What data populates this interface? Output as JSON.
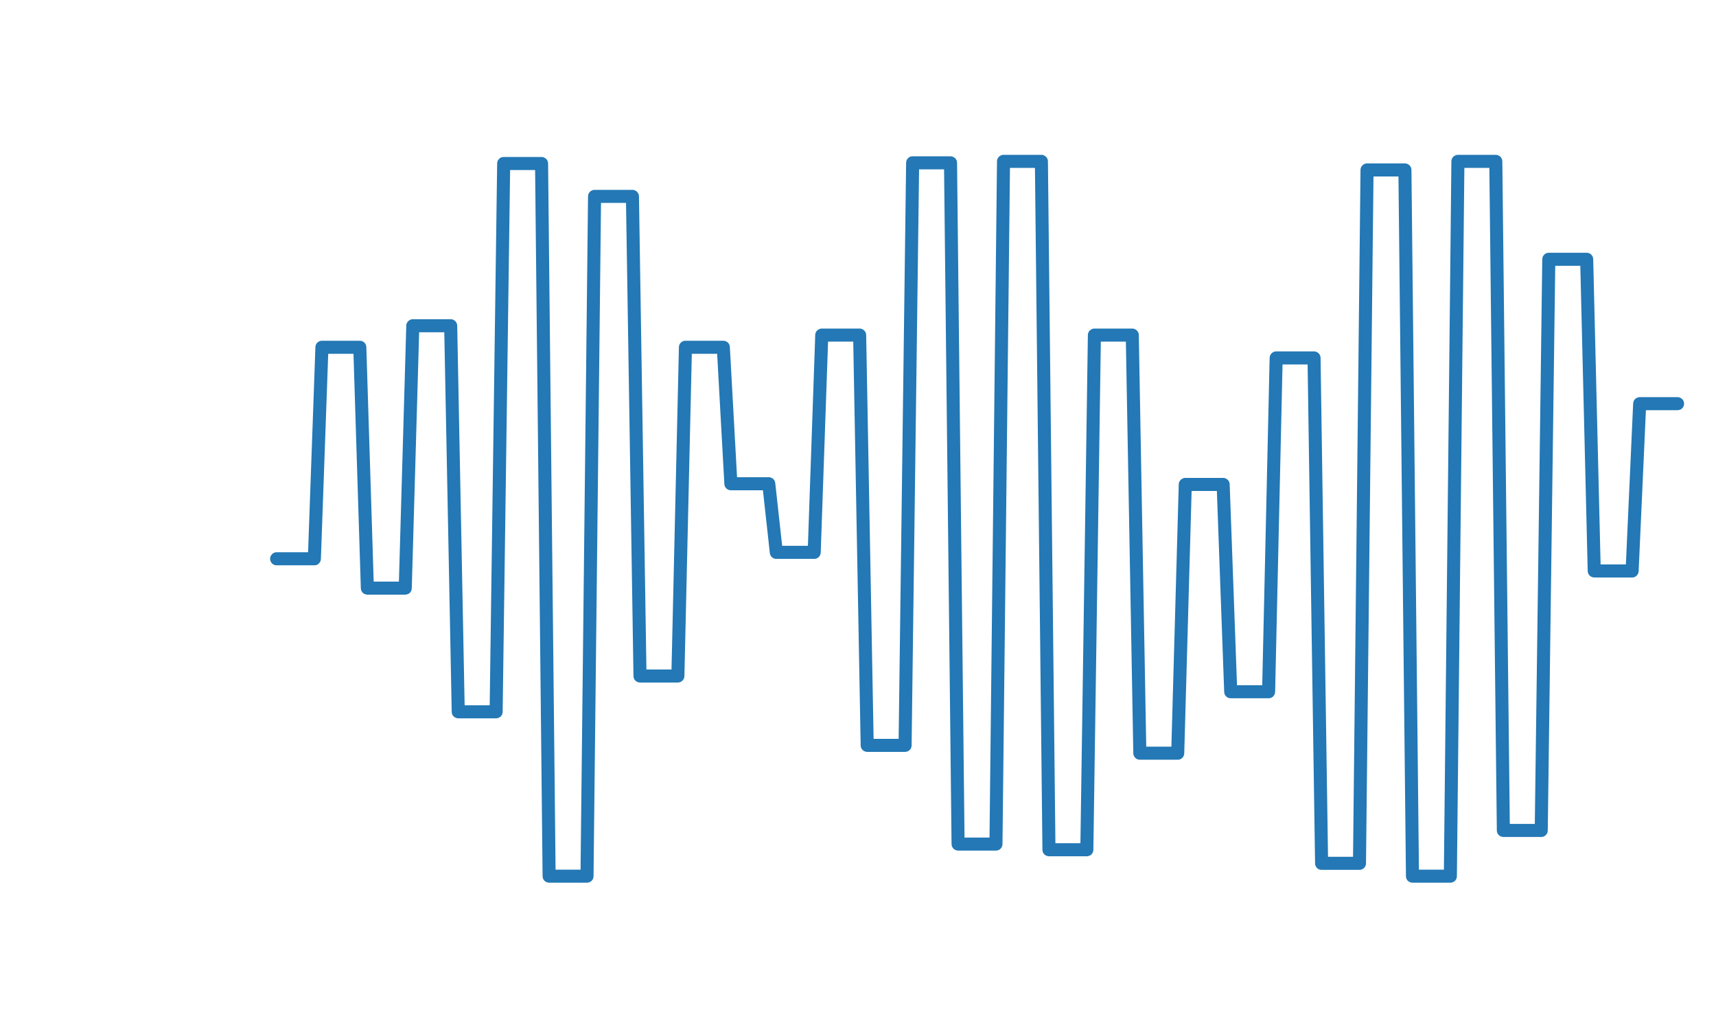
{
  "figure": {
    "stroke_color": "#2378B5",
    "background_color": "#FFFFFF",
    "icon": "sound-wave-icon"
  },
  "waveform": {
    "line_style": "stepped square wave",
    "levels": [
      0.556,
      0.26,
      0.597,
      0.23,
      0.77,
      0.003,
      1.0,
      0.049,
      0.72,
      0.26,
      0.451,
      0.547,
      0.243,
      0.817,
      0.002,
      0.955,
      0.0,
      0.963,
      0.243,
      0.828,
      0.452,
      0.742,
      0.275,
      0.982,
      0.012,
      1.0,
      0.0,
      0.936,
      0.137,
      0.573,
      0.339
    ]
  }
}
